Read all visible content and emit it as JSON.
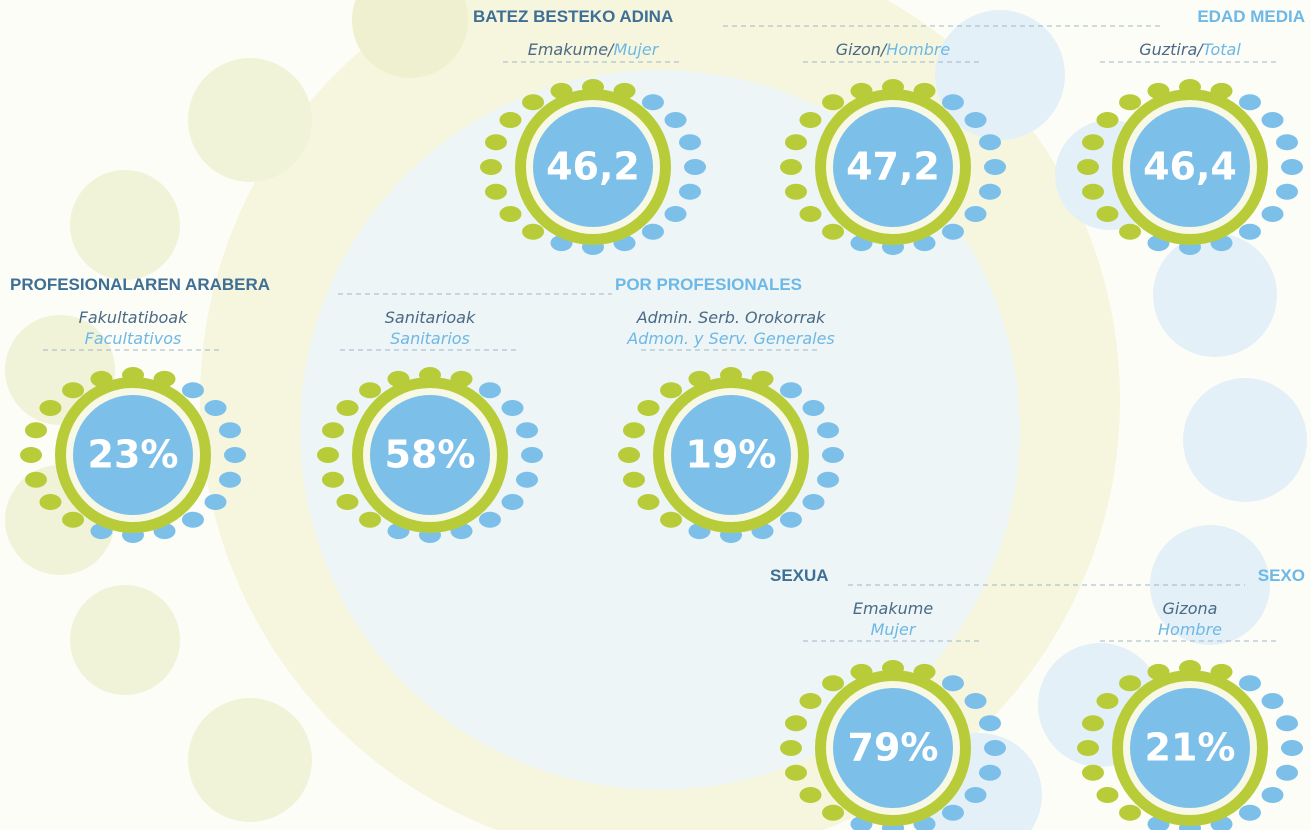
{
  "sections": [
    {
      "title": "BATEZ BESTEKO ADINA",
      "title_es": "EDAD MEDIA",
      "items": [
        {
          "label": "Emakume/",
          "label_es": "Mujer",
          "value": "46,2"
        },
        {
          "label": "Gizon/",
          "label_es": "Hombre",
          "value": "47,2"
        },
        {
          "label": "Guztira/",
          "label_es": "Total",
          "value": "46,4"
        }
      ]
    },
    {
      "title": "PROFESIONALAREN ARABERA",
      "title_es": "POR PROFESIONALES",
      "items": [
        {
          "label": "Fakultatiboak",
          "label_es": "Facultativos",
          "value": "23%"
        },
        {
          "label": "Sanitarioak",
          "label_es": "Sanitarios",
          "value": "58%"
        },
        {
          "label": "Admin. Serb. Orokorrak",
          "label_es": "Admon. y Serv. Generales",
          "value": "19%"
        }
      ]
    },
    {
      "title": "SEXUA",
      "title_es": "SEXO",
      "items": [
        {
          "label": "Emakume",
          "label_es": "Mujer",
          "value": "79%"
        },
        {
          "label": "Gizona",
          "label_es": "Hombre",
          "value": "21%"
        }
      ]
    }
  ]
}
